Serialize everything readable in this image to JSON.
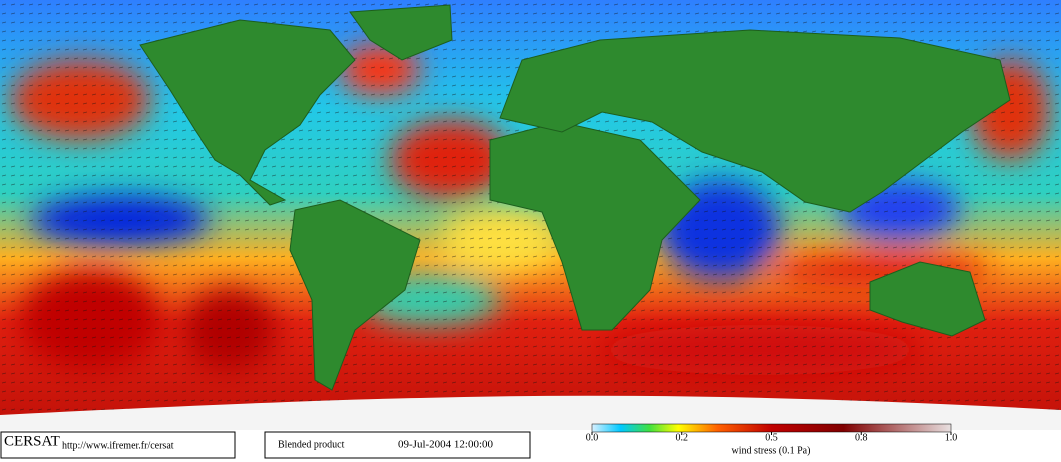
{
  "footer": {
    "logo": "CERSAT",
    "url": "http://www.ifremer.fr/cersat",
    "product": "Blended product",
    "date": "09-Jul-2004 12:00:00"
  },
  "colorbar": {
    "label": "wind stress (0.1 Pa)",
    "ticks": [
      {
        "value": 0,
        "label": "0.0"
      },
      0.2,
      0.5,
      0.8,
      {
        "value": 1,
        "label": "1.0"
      }
    ]
  }
}
